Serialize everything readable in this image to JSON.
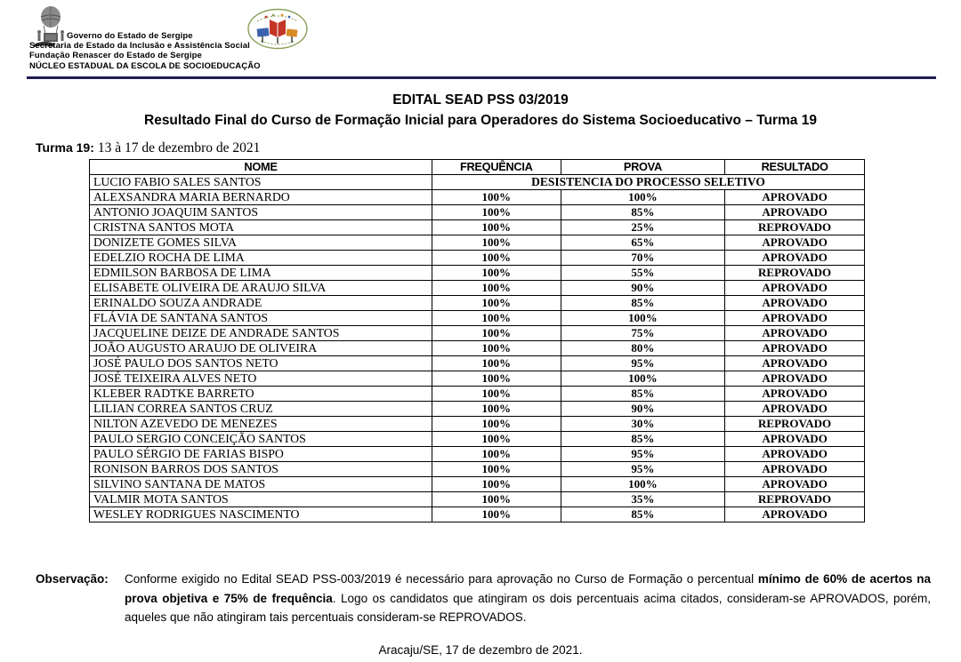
{
  "colors": {
    "head_rule": "#201d52",
    "text": "#000000",
    "logo_red": "#c43528",
    "logo_blue": "#3a62ae",
    "logo_orange": "#d98a25",
    "logo_green": "#8aa05a"
  },
  "letterhead": {
    "left_logo_icon": "governo-sergipe-balloon-emblem",
    "right_logo_icon": "escola-socioeducacao-oval-logo",
    "org_lines": [
      "Governo do Estado de Sergipe",
      "Secretaria de Estado da Inclusão e Assistência Social",
      "Fundação Renascer do Estado de Sergipe",
      "NÚCLEO ESTADUAL DA ESCOLA DE SOCIOEDUCAÇÃO"
    ]
  },
  "title": {
    "line1": "EDITAL SEAD PSS 03/2019",
    "line2": "Resultado Final do Curso de Formação Inicial para Operadores do Sistema Socioeducativo – Turma 19"
  },
  "turma": {
    "label": "Turma 19:",
    "dates": "13 à 17 de dezembro de 2021"
  },
  "table": {
    "columns": [
      "NOME",
      "FREQUÊNCIA",
      "PROVA",
      "RESULTADO"
    ],
    "rows": [
      {
        "nome": "LUCIO FABIO SALES SANTOS",
        "span_text": "DESISTENCIA DO PROCESSO SELETIVO"
      },
      {
        "nome": "ALEXSANDRA MARIA BERNARDO",
        "frequencia": "100%",
        "prova": "100%",
        "resultado": "APROVADO"
      },
      {
        "nome": "ANTONIO JOAQUIM SANTOS",
        "frequencia": "100%",
        "prova": "85%",
        "resultado": "APROVADO"
      },
      {
        "nome": "CRISTNA SANTOS MOTA",
        "frequencia": "100%",
        "prova": "25%",
        "resultado": "REPROVADO"
      },
      {
        "nome": "DONIZETE GOMES SILVA",
        "frequencia": "100%",
        "prova": "65%",
        "resultado": "APROVADO"
      },
      {
        "nome": "EDELZIO ROCHA DE LIMA",
        "frequencia": "100%",
        "prova": "70%",
        "resultado": "APROVADO"
      },
      {
        "nome": "EDMILSON BARBOSA DE LIMA",
        "frequencia": "100%",
        "prova": "55%",
        "resultado": "REPROVADO"
      },
      {
        "nome": "ELISABETE OLIVEIRA DE ARAUJO SILVA",
        "frequencia": "100%",
        "prova": "90%",
        "resultado": "APROVADO"
      },
      {
        "nome": "ERINALDO SOUZA ANDRADE",
        "frequencia": "100%",
        "prova": "85%",
        "resultado": "APROVADO"
      },
      {
        "nome": "FLÁVIA DE SANTANA SANTOS",
        "frequencia": "100%",
        "prova": "100%",
        "resultado": "APROVADO"
      },
      {
        "nome": "JACQUELINE DEIZE DE ANDRADE SANTOS",
        "frequencia": "100%",
        "prova": "75%",
        "resultado": "APROVADO"
      },
      {
        "nome": "JOÃO AUGUSTO ARAUJO DE OLIVEIRA",
        "frequencia": "100%",
        "prova": "80%",
        "resultado": "APROVADO"
      },
      {
        "nome": "JOSÉ PAULO DOS SANTOS NETO",
        "frequencia": "100%",
        "prova": "95%",
        "resultado": "APROVADO"
      },
      {
        "nome": "JOSÉ TEIXEIRA ALVES NETO",
        "frequencia": "100%",
        "prova": "100%",
        "resultado": "APROVADO"
      },
      {
        "nome": "KLEBER RADTKE BARRETO",
        "frequencia": "100%",
        "prova": "85%",
        "resultado": "APROVADO"
      },
      {
        "nome": "LILIAN CORREA SANTOS CRUZ",
        "frequencia": "100%",
        "prova": "90%",
        "resultado": "APROVADO"
      },
      {
        "nome": "NILTON AZEVEDO DE MENEZES",
        "frequencia": "100%",
        "prova": "30%",
        "resultado": "REPROVADO"
      },
      {
        "nome": "PAULO SERGIO CONCEIÇÃO SANTOS",
        "frequencia": "100%",
        "prova": "85%",
        "resultado": "APROVADO"
      },
      {
        "nome": "PAULO SÉRGIO DE FARIAS BISPO",
        "frequencia": "100%",
        "prova": "95%",
        "resultado": "APROVADO"
      },
      {
        "nome": "RONISON BARROS DOS SANTOS",
        "frequencia": "100%",
        "prova": "95%",
        "resultado": "APROVADO"
      },
      {
        "nome": "SILVINO SANTANA DE MATOS",
        "frequencia": "100%",
        "prova": "100%",
        "resultado": "APROVADO"
      },
      {
        "nome": "VALMIR MOTA SANTOS",
        "frequencia": "100%",
        "prova": "35%",
        "resultado": "REPROVADO"
      },
      {
        "nome": "WESLEY RODRIGUES NASCIMENTO",
        "frequencia": "100%",
        "prova": "85%",
        "resultado": "APROVADO"
      }
    ]
  },
  "observacao": {
    "label": "Observação:",
    "text_before": "Conforme exigido no Edital SEAD PSS-003/2019 é necessário para aprovação no Curso de Formação o percentual ",
    "text_bold": "mínimo de 60% de acertos na prova objetiva e 75% de frequência",
    "text_after": ". Logo os candidatos que atingiram os dois percentuais acima citados, consideram-se APROVADOS, porém, aqueles que não atingiram tais percentuais consideram-se REPROVADOS."
  },
  "footer": {
    "dateline": "Aracaju/SE, 17 de dezembro de 2021."
  }
}
